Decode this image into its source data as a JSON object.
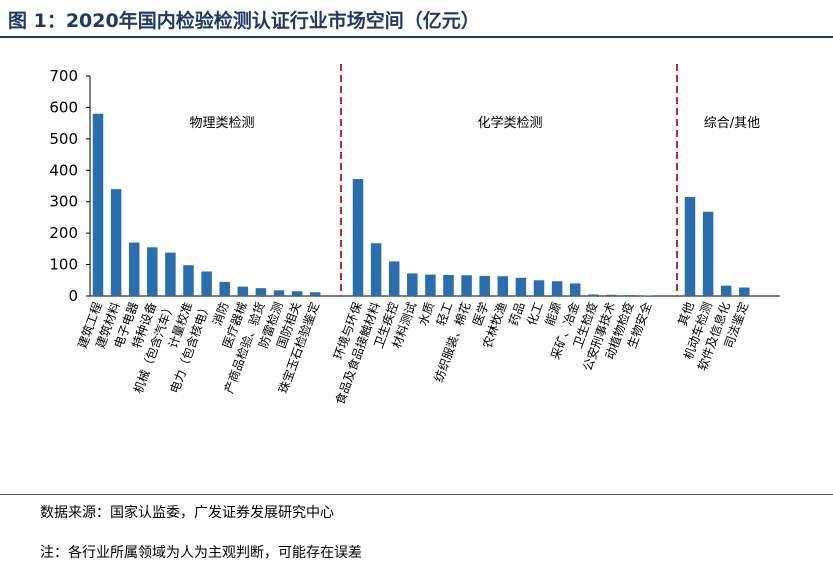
{
  "header": {
    "title": "图 1：2020年国内检验检测认证行业市场空间（亿元）"
  },
  "footer": {
    "source": "数据来源：国家认监委，广发证券发展研究中心",
    "note": "注：各行业所属领域为人为主观判断，可能存在误差"
  },
  "colors": {
    "bar": "#2a6ead",
    "divider": "#c0282d",
    "title": "#1f3a66"
  },
  "chart_data": {
    "type": "bar",
    "ylim": [
      0,
      700
    ],
    "yticks": [
      0,
      100,
      200,
      300,
      400,
      500,
      600,
      700
    ],
    "groups": [
      {
        "label": "物理类检测",
        "categories": [
          "建筑工程",
          "建筑材料",
          "电子电器",
          "特种设备",
          "机械（包含汽车）",
          "计量校准",
          "电力（包含核电）",
          "消防",
          "医疗器械",
          "产商品检验、验货",
          "防雷检测",
          "国防相关",
          "珠宝玉石检验鉴定"
        ],
        "values": [
          580,
          340,
          170,
          155,
          138,
          98,
          78,
          45,
          30,
          25,
          18,
          15,
          12
        ]
      },
      {
        "label": "化学类检测",
        "categories": [
          "环境与环保",
          "食品及食品接触材料",
          "卫生疾控",
          "材料测试",
          "水质",
          "轻工",
          "纺织服装、棉花",
          "医学",
          "农林牧渔",
          "药品",
          "化工",
          "能源",
          "采矿、冶金",
          "卫生检疫",
          "公安刑事技术",
          "动植物检疫",
          "生物安全"
        ],
        "values": [
          372,
          168,
          110,
          72,
          68,
          67,
          66,
          64,
          63,
          58,
          50,
          47,
          40,
          5,
          4,
          3,
          2
        ]
      },
      {
        "label": "综合/其他",
        "categories": [
          "其他",
          "机动车检测",
          "软件及信息化",
          "司法鉴定"
        ],
        "values": [
          315,
          268,
          33,
          27
        ]
      }
    ]
  }
}
